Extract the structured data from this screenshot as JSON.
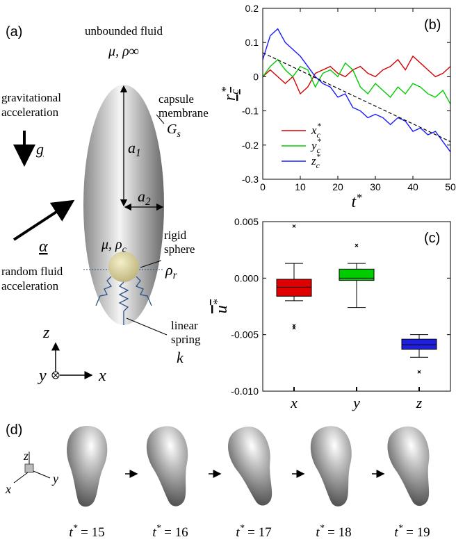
{
  "panel_a": {
    "label": "(a)",
    "fluid": "unbounded fluid",
    "fluid_props": "μ, ρ∞",
    "membrane": [
      "capsule",
      "membrane"
    ],
    "membrane_symbol": {
      "base": "G",
      "sub": "s"
    },
    "gravity": [
      "gravitational",
      "acceleration"
    ],
    "gravity_symbol": "g",
    "a1": {
      "base": "a",
      "sub": "1"
    },
    "a2": {
      "base": "a",
      "sub": "2"
    },
    "capsule_props": {
      "base": "μ, ρ",
      "sub": "c"
    },
    "sphere": [
      "rigid",
      "sphere"
    ],
    "sphere_symbol": {
      "base": "ρ",
      "sub": "r"
    },
    "alpha_symbol": "α",
    "random": [
      "random fluid",
      "acceleration"
    ],
    "spring": [
      "linear",
      "spring"
    ],
    "spring_symbol": "k",
    "axes": {
      "z": "z",
      "y": "y",
      "x": "x"
    }
  },
  "chart_data": [
    {
      "type": "line",
      "panel_label": "(b)",
      "ylabel": {
        "base": "r",
        "sub": "c",
        "sup": "*"
      },
      "xlabel": {
        "base": "t",
        "sup": "*"
      },
      "x": [
        0,
        2,
        4,
        6,
        8,
        10,
        12,
        14,
        16,
        18,
        20,
        22,
        24,
        26,
        28,
        30,
        32,
        34,
        36,
        38,
        40,
        42,
        44,
        46,
        48,
        50
      ],
      "series": [
        {
          "name": {
            "base": "x",
            "sub": "c",
            "sup": "*"
          },
          "color": "#d40000",
          "values": [
            0.0,
            0.02,
            0.0,
            -0.02,
            0.0,
            -0.05,
            -0.03,
            0.01,
            0.02,
            0.03,
            0.01,
            0.0,
            0.02,
            0.03,
            0.01,
            0.0,
            0.02,
            0.03,
            0.05,
            0.02,
            0.06,
            0.04,
            0.02,
            0.0,
            0.01,
            0.03
          ]
        },
        {
          "name": {
            "base": "y",
            "sub": "c",
            "sup": "*"
          },
          "color": "#00cc00",
          "values": [
            0.0,
            0.03,
            0.05,
            0.02,
            0.0,
            0.03,
            0.02,
            -0.03,
            0.01,
            0.02,
            0.0,
            0.04,
            0.02,
            -0.03,
            -0.05,
            -0.02,
            -0.04,
            -0.06,
            -0.03,
            -0.05,
            -0.02,
            -0.03,
            -0.05,
            -0.06,
            -0.04,
            -0.08
          ]
        },
        {
          "name": {
            "base": "z",
            "sub": "c",
            "sup": "*"
          },
          "color": "#1a1aff",
          "values": [
            0.05,
            0.12,
            0.14,
            0.1,
            0.08,
            0.06,
            0.03,
            0.0,
            -0.02,
            -0.03,
            -0.06,
            -0.05,
            -0.09,
            -0.1,
            -0.12,
            -0.11,
            -0.12,
            -0.14,
            -0.12,
            -0.13,
            -0.16,
            -0.15,
            -0.17,
            -0.16,
            -0.19,
            -0.22
          ]
        }
      ],
      "fit": {
        "x": [
          0,
          25,
          50
        ],
        "values": [
          0.07,
          -0.06,
          -0.19
        ],
        "color": "#000000"
      },
      "xlim": [
        0,
        50
      ],
      "xticks": [
        0,
        10,
        20,
        30,
        40,
        50
      ],
      "ylim": [
        -0.3,
        0.2
      ],
      "yticks": [
        -0.3,
        -0.2,
        -0.1,
        0,
        0.1,
        0.2
      ]
    },
    {
      "type": "box",
      "panel_label": "(c)",
      "ylabel": {
        "base": "u",
        "sup": "*"
      },
      "categories": [
        "x",
        "y",
        "z"
      ],
      "colors": [
        "#e00000",
        "#00cc00",
        "#1f1fe0"
      ],
      "boxes": [
        {
          "whislo": -0.002,
          "q1": -0.0016,
          "med": -0.0008,
          "q3": -0.0001,
          "whishi": 0.0013,
          "fliers": [
            0.0046,
            -0.0042,
            -0.0044
          ]
        },
        {
          "whislo": -0.0026,
          "q1": -0.0002,
          "med": 0.0,
          "q3": 0.0008,
          "whishi": 0.0013,
          "fliers": [
            0.0029
          ]
        },
        {
          "whislo": -0.007,
          "q1": -0.0063,
          "med": -0.0059,
          "q3": -0.0054,
          "whishi": -0.005,
          "fliers": [
            -0.0083
          ]
        }
      ],
      "ylim": [
        -0.01,
        0.005
      ],
      "yticks": [
        {
          "value": -0.01,
          "label": "-0.010"
        },
        {
          "value": -0.005,
          "label": "-0.005"
        },
        {
          "value": 0,
          "label": "0.000"
        },
        {
          "value": 0.005,
          "label": "0.005"
        }
      ]
    }
  ],
  "panel_d": {
    "label": "(d)",
    "axes": {
      "z": "z",
      "x": "x",
      "y": "y"
    },
    "snapshots": [
      {
        "base": "t",
        "sup": "*",
        "rest": " = 15"
      },
      {
        "base": "t",
        "sup": "*",
        "rest": " = 16"
      },
      {
        "base": "t",
        "sup": "*",
        "rest": " = 17"
      },
      {
        "base": "t",
        "sup": "*",
        "rest": " = 18"
      },
      {
        "base": "t",
        "sup": "*",
        "rest": " = 19"
      }
    ]
  }
}
